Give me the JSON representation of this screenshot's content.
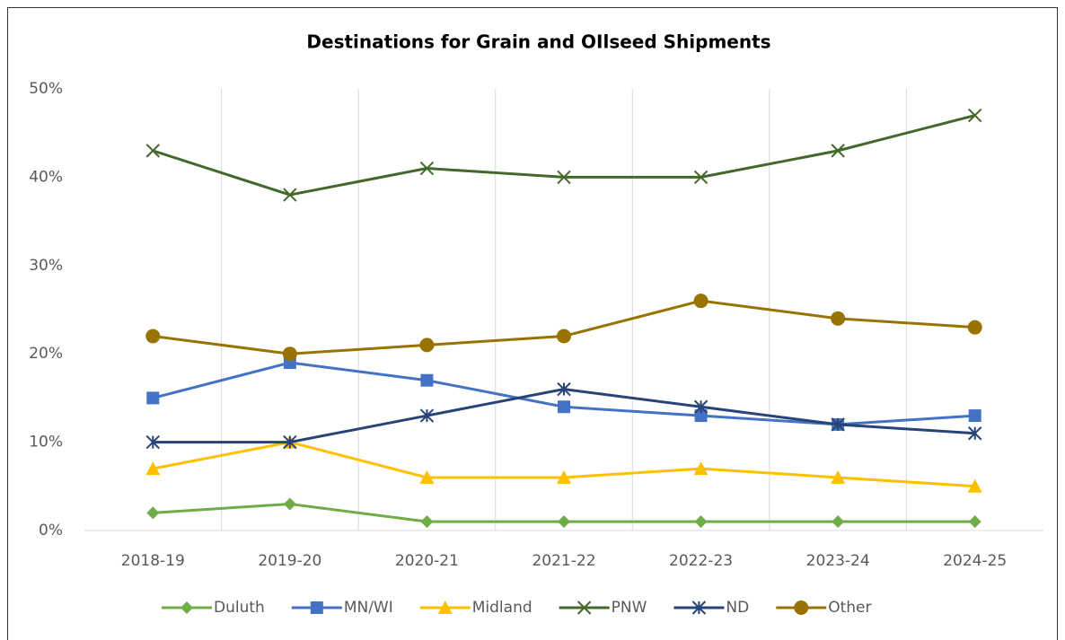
{
  "chart_data": {
    "type": "line",
    "title": "Destinations for Grain and OIlseed Shipments",
    "categories": [
      "2018-19",
      "2019-20",
      "2020-21",
      "2021-22",
      "2022-23",
      "2023-24",
      "2024-25"
    ],
    "series": [
      {
        "name": "Duluth",
        "color": "#70ad47",
        "marker": "diamond",
        "values": [
          2,
          3,
          1,
          1,
          1,
          1,
          1
        ]
      },
      {
        "name": "MN/WI",
        "color": "#4472c4",
        "marker": "square",
        "values": [
          15,
          19,
          17,
          14,
          13,
          12,
          13
        ]
      },
      {
        "name": "Midland",
        "color": "#ffc000",
        "marker": "triangle",
        "values": [
          7,
          10,
          6,
          6,
          7,
          6,
          5
        ]
      },
      {
        "name": "PNW",
        "color": "#43682b",
        "marker": "x",
        "values": [
          43,
          38,
          41,
          40,
          40,
          43,
          47
        ]
      },
      {
        "name": "ND",
        "color": "#264478",
        "marker": "star",
        "values": [
          10,
          10,
          13,
          16,
          14,
          12,
          11
        ]
      },
      {
        "name": "Other",
        "color": "#997300",
        "marker": "circle",
        "values": [
          22,
          20,
          21,
          22,
          26,
          24,
          23
        ]
      }
    ],
    "ylim": [
      0,
      50
    ],
    "yticks": [
      {
        "value": 0,
        "label": "0%"
      },
      {
        "value": 10,
        "label": "10%"
      },
      {
        "value": 20,
        "label": "20%"
      },
      {
        "value": 30,
        "label": "30%"
      },
      {
        "value": 40,
        "label": "40%"
      },
      {
        "value": 50,
        "label": "50%"
      }
    ],
    "grid": "x",
    "legend": "bottom"
  }
}
